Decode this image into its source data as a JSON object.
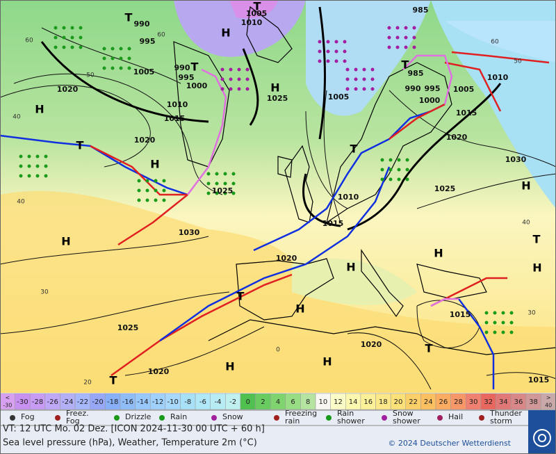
{
  "map": {
    "pressure_labels": [
      "990",
      "995",
      "1005",
      "1005",
      "1010",
      "985",
      "990",
      "995",
      "1000",
      "1010",
      "1015",
      "1020",
      "1020",
      "1025",
      "1030",
      "1025",
      "1005",
      "985",
      "990",
      "995",
      "1000",
      "1005",
      "1010",
      "1015",
      "1020",
      "1025",
      "1030",
      "1010",
      "1015",
      "1020",
      "1025",
      "1020",
      "1020",
      "1015",
      "1015"
    ],
    "temperature_labels": [
      "60",
      "50",
      "40",
      "40",
      "30",
      "20",
      "60",
      "60",
      "50",
      "40",
      "30",
      "0"
    ],
    "pressure_centers": [
      "H",
      "T",
      "T",
      "T",
      "H",
      "H",
      "T",
      "H",
      "H",
      "H",
      "H",
      "H",
      "H",
      "T",
      "H",
      "H",
      "H",
      "T",
      "T",
      "T",
      "T",
      "T"
    ],
    "legend": {
      "scale": [
        {
          "label": [
            "<",
            "-30"
          ],
          "color": "#d8a0f0"
        },
        {
          "label": "-30",
          "color": "#c890f0"
        },
        {
          "label": "-28",
          "color": "#c89cf4"
        },
        {
          "label": "-26",
          "color": "#c0a8f8"
        },
        {
          "label": "-24",
          "color": "#b4b0f8"
        },
        {
          "label": "-22",
          "color": "#a8b8fc"
        },
        {
          "label": "-20",
          "color": "#98a8f8"
        },
        {
          "label": "-18",
          "color": "#88b0f8"
        },
        {
          "label": "-16",
          "color": "#90bcf8"
        },
        {
          "label": "-14",
          "color": "#98c8fc"
        },
        {
          "label": "-12",
          "color": "#a0d0fc"
        },
        {
          "label": "-10",
          "color": "#a8d8fc"
        },
        {
          "label": "-8",
          "color": "#a8e0f8"
        },
        {
          "label": "-6",
          "color": "#b0e8f8"
        },
        {
          "label": "-4",
          "color": "#b8ecf4"
        },
        {
          "label": "-2",
          "color": "#c0f0f0"
        },
        {
          "label": "0",
          "color": "#50c050"
        },
        {
          "label": "2",
          "color": "#68cc60"
        },
        {
          "label": "4",
          "color": "#80d470"
        },
        {
          "label": "6",
          "color": "#98dc84"
        },
        {
          "label": "8",
          "color": "#b4e4a0"
        },
        {
          "label": "10",
          "color": "#f8f8f0"
        },
        {
          "label": "12",
          "color": "#fcfcc8"
        },
        {
          "label": "14",
          "color": "#fcf8b0"
        },
        {
          "label": "16",
          "color": "#fcf098"
        },
        {
          "label": "18",
          "color": "#fce888"
        },
        {
          "label": "20",
          "color": "#fce078"
        },
        {
          "label": "22",
          "color": "#fcd068"
        },
        {
          "label": "24",
          "color": "#fcc060"
        },
        {
          "label": "26",
          "color": "#fcac60"
        },
        {
          "label": "28",
          "color": "#f89868"
        },
        {
          "label": "30",
          "color": "#f08070"
        },
        {
          "label": "32",
          "color": "#e86860"
        },
        {
          "label": "34",
          "color": "#e07878"
        },
        {
          "label": "36",
          "color": "#d88888"
        },
        {
          "label": "38",
          "color": "#d09898"
        },
        {
          "label": [
            ">",
            "40"
          ],
          "color": "#c8a8a8"
        }
      ],
      "items": [
        "Fog",
        [
          "Freez.",
          "Fog"
        ],
        "Drizzle",
        "Rain",
        "Snow",
        [
          "Freezing",
          "rain"
        ],
        [
          "Rain",
          "shower"
        ],
        [
          "Snow",
          "shower"
        ],
        "Hail",
        [
          "Thunder",
          "storm"
        ],
        "DWD"
      ]
    },
    "footer": {
      "valid_time": "VT: 12 UTC Mo.  02 Dez. [ICON 2024-11-30  00 UTC + 60 h]",
      "description": "Sea level pressure (hPa), Weather, Temperature 2m (°C)",
      "copyright": "© 2024 Deutscher Wetterdienst"
    }
  }
}
